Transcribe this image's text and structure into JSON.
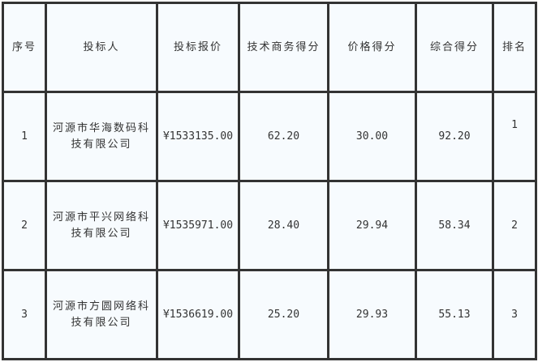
{
  "headers": [
    "序号",
    "投标人",
    "投标报价",
    "技术商务得分",
    "价格得分",
    "综合得分",
    "排名"
  ],
  "rows": [
    {
      "no": "1",
      "bidder": "河源市华海数码科技有限公司",
      "price": "¥1533135.00",
      "tech": "62.20",
      "price_score": "30.00",
      "total": "92.20",
      "rank": "1"
    },
    {
      "no": "2",
      "bidder": "河源市平兴网络科技有限公司",
      "price": "¥1535971.00",
      "tech": "28.40",
      "price_score": "29.94",
      "total": "58.34",
      "rank": "2"
    },
    {
      "no": "3",
      "bidder": "河源市方圆网络科技有限公司",
      "price": "¥1536619.00",
      "tech": "25.20",
      "price_score": "29.93",
      "total": "55.13",
      "rank": "3"
    }
  ]
}
